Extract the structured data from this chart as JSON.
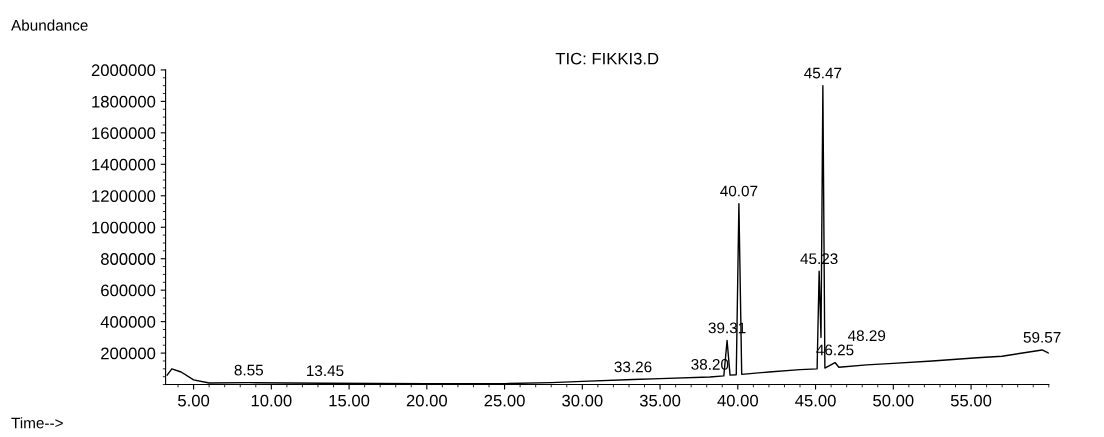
{
  "chart_data": {
    "type": "line",
    "title": "TIC: FIKKI3.D",
    "xlabel": "Time-->",
    "ylabel": "Abundance",
    "x": [
      3.3,
      3.6,
      4.2,
      5.0,
      6.0,
      8.55,
      13.45,
      20,
      25,
      28,
      30,
      33.26,
      35,
      38.2,
      39.1,
      39.31,
      39.5,
      39.9,
      40.07,
      40.25,
      42,
      44.0,
      45.1,
      45.23,
      45.35,
      45.47,
      45.6,
      46.25,
      46.5,
      48.29,
      50,
      52.5,
      55.4,
      57,
      59.57,
      60
    ],
    "series": [
      {
        "color": "#000000",
        "values": [
          60000,
          100000,
          80000,
          30000,
          10000,
          12000,
          8000,
          5000,
          6000,
          12000,
          20000,
          32000,
          38000,
          48000,
          55000,
          280000,
          60000,
          62000,
          1150000,
          65000,
          80000,
          95000,
          100000,
          720000,
          300000,
          1900000,
          105000,
          140000,
          110000,
          125000,
          135000,
          150000,
          170000,
          180000,
          220000,
          200000
        ]
      }
    ],
    "annotations": [
      {
        "text": "8.55",
        "x": 8.55,
        "y": 12000
      },
      {
        "text": "13.45",
        "x": 13.45,
        "y": 8000
      },
      {
        "text": "33.26",
        "x": 33.26,
        "y": 32000
      },
      {
        "text": "38.20",
        "x": 38.2,
        "y": 48000
      },
      {
        "text": "39.31",
        "x": 39.31,
        "y": 280000
      },
      {
        "text": "40.07",
        "x": 40.07,
        "y": 1150000
      },
      {
        "text": "45.23",
        "x": 45.23,
        "y": 720000
      },
      {
        "text": "45.47",
        "x": 45.47,
        "y": 1900000
      },
      {
        "text": "46.25",
        "x": 46.25,
        "y": 140000
      },
      {
        "text": "48.29",
        "x": 48.29,
        "y": 125000
      },
      {
        "text": "59.57",
        "x": 59.57,
        "y": 220000
      }
    ],
    "xlim": [
      3.2,
      60
    ],
    "ylim": [
      0,
      2000000
    ],
    "xticks": [
      {
        "value": 5,
        "label": "5.00"
      },
      {
        "value": 10,
        "label": "10.00"
      },
      {
        "value": 15,
        "label": "15.00"
      },
      {
        "value": 20,
        "label": "20.00"
      },
      {
        "value": 25,
        "label": "25.00"
      },
      {
        "value": 30,
        "label": "30.00"
      },
      {
        "value": 35,
        "label": "35.00"
      },
      {
        "value": 40,
        "label": "40.00"
      },
      {
        "value": 45,
        "label": "45.00"
      },
      {
        "value": 50,
        "label": "50.00"
      },
      {
        "value": 55,
        "label": "55.00"
      }
    ],
    "yticks": [
      200000,
      400000,
      600000,
      800000,
      1000000,
      1200000,
      1400000,
      1600000,
      1800000,
      2000000
    ],
    "grid": false,
    "legend": false
  }
}
